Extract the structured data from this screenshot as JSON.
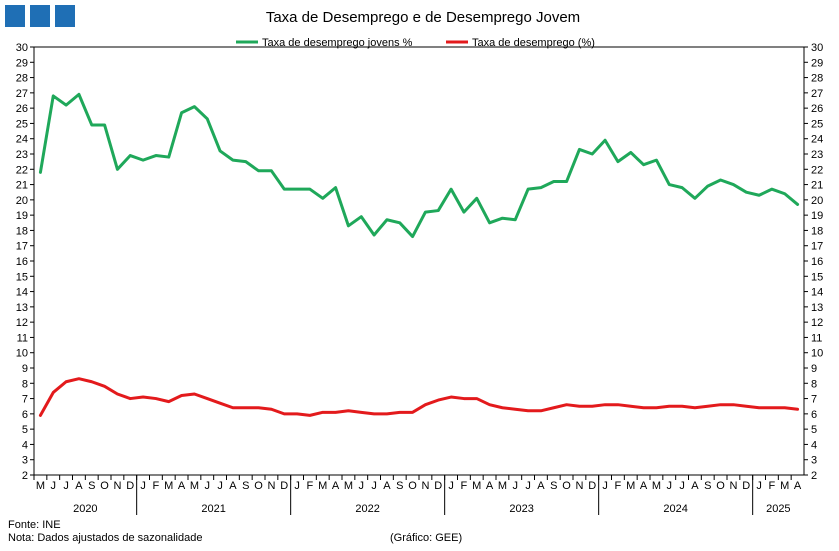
{
  "logo": {
    "name": "institution-logo",
    "color": "#1f6fb5"
  },
  "footer": {
    "source": "Fonte: INE",
    "note": "Nota: Dados ajustados de sazonalidade",
    "credit": "(Gráfico: GEE)"
  },
  "chart_data": {
    "type": "line",
    "title": "Taxa de Desemprego e de Desemprego Jovem",
    "xlabel": "",
    "ylabel": "",
    "ylim": [
      2,
      30
    ],
    "y_ticks": [
      2,
      3,
      4,
      5,
      6,
      7,
      8,
      9,
      10,
      11,
      12,
      13,
      14,
      15,
      16,
      17,
      18,
      19,
      20,
      21,
      22,
      23,
      24,
      25,
      26,
      27,
      28,
      29,
      30
    ],
    "dual_y_axis_same_scale": true,
    "grid": false,
    "legend_position": "top-center",
    "month_labels": [
      "M",
      "J",
      "J",
      "A",
      "S",
      "O",
      "N",
      "D",
      "J",
      "F",
      "M",
      "A",
      "M",
      "J",
      "J",
      "A",
      "S",
      "O",
      "N",
      "D",
      "J",
      "F",
      "M",
      "A",
      "M",
      "J",
      "J",
      "A",
      "S",
      "O",
      "N",
      "D",
      "J",
      "F",
      "M",
      "A",
      "M",
      "J",
      "J",
      "A",
      "S",
      "O",
      "N",
      "D",
      "J",
      "F",
      "M",
      "A",
      "M",
      "J",
      "J",
      "A",
      "S",
      "O",
      "N",
      "D",
      "J",
      "F",
      "M",
      "A"
    ],
    "years": [
      {
        "label": "2020",
        "start": 0,
        "end": 7
      },
      {
        "label": "2021",
        "start": 8,
        "end": 19
      },
      {
        "label": "2022",
        "start": 20,
        "end": 31
      },
      {
        "label": "2023",
        "start": 32,
        "end": 43
      },
      {
        "label": "2024",
        "start": 44,
        "end": 55
      },
      {
        "label": "2025",
        "start": 56,
        "end": 59
      }
    ],
    "series": [
      {
        "name": "Taxa de desemprego jovens %",
        "color": "#1fa85a",
        "values": [
          21.8,
          26.8,
          26.2,
          26.9,
          24.9,
          24.9,
          22.0,
          22.9,
          22.6,
          22.9,
          22.8,
          25.7,
          26.1,
          25.3,
          23.2,
          22.6,
          22.5,
          21.9,
          21.9,
          20.7,
          20.7,
          20.7,
          20.1,
          20.8,
          18.3,
          18.9,
          17.7,
          18.7,
          18.5,
          17.6,
          19.2,
          19.3,
          20.7,
          19.2,
          20.1,
          18.5,
          18.8,
          18.7,
          20.7,
          20.8,
          21.2,
          21.2,
          23.3,
          23.0,
          23.9,
          22.5,
          23.1,
          22.3,
          22.6,
          21.0,
          20.8,
          20.1,
          20.9,
          21.3,
          21.0,
          20.5,
          20.3,
          20.7,
          20.4,
          19.7
        ]
      },
      {
        "name": "Taxa de desemprego (%)",
        "color": "#e31a1c",
        "values": [
          5.9,
          7.4,
          8.1,
          8.3,
          8.1,
          7.8,
          7.3,
          7.0,
          7.1,
          7.0,
          6.8,
          7.2,
          7.3,
          7.0,
          6.7,
          6.4,
          6.4,
          6.4,
          6.3,
          6.0,
          6.0,
          5.9,
          6.1,
          6.1,
          6.2,
          6.1,
          6.0,
          6.0,
          6.1,
          6.1,
          6.6,
          6.9,
          7.1,
          7.0,
          7.0,
          6.6,
          6.4,
          6.3,
          6.2,
          6.2,
          6.4,
          6.6,
          6.5,
          6.5,
          6.6,
          6.6,
          6.5,
          6.4,
          6.4,
          6.5,
          6.5,
          6.4,
          6.5,
          6.6,
          6.6,
          6.5,
          6.4,
          6.4,
          6.4,
          6.3
        ]
      }
    ]
  }
}
